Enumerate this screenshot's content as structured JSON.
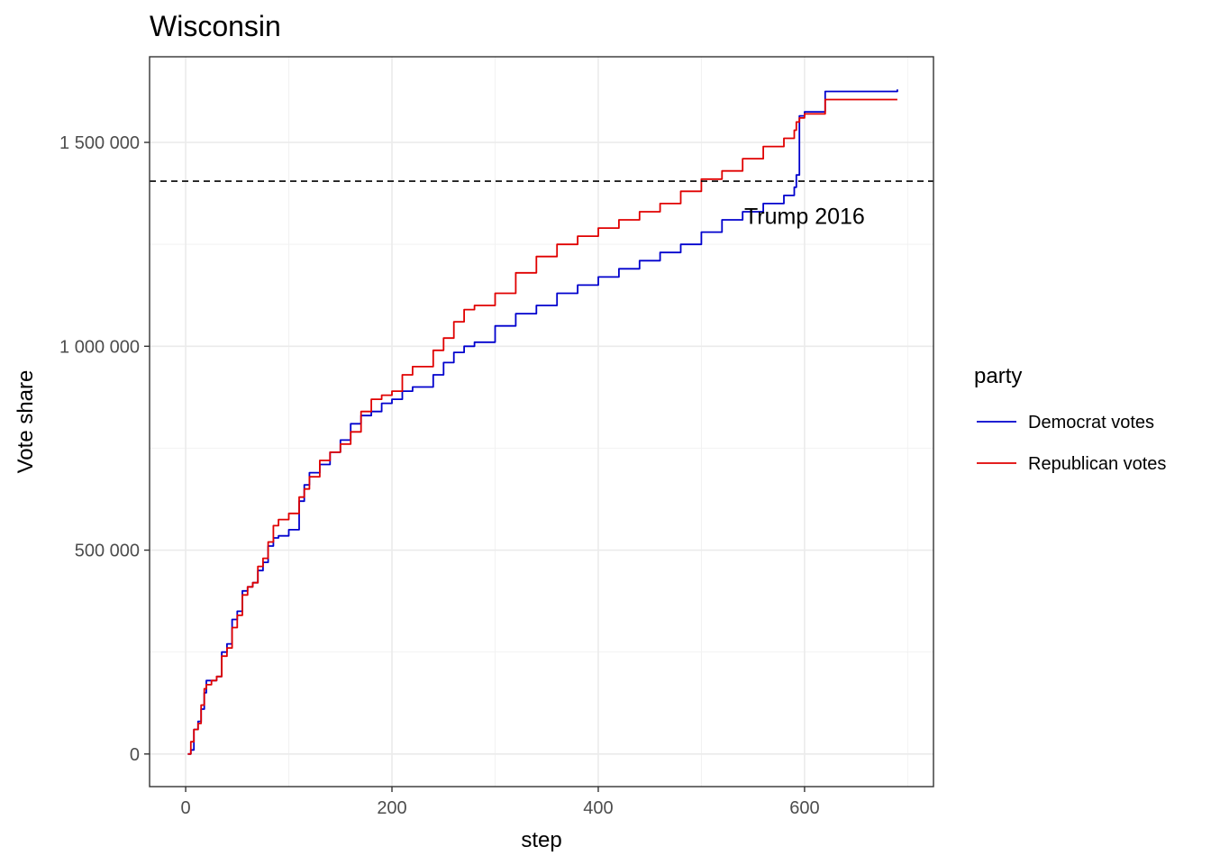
{
  "chart_data": {
    "type": "line",
    "title": "Wisconsin",
    "xlabel": "step",
    "ylabel": "Vote share",
    "xlim": [
      -35,
      725
    ],
    "ylim": [
      -80000,
      1710000
    ],
    "x_ticks": [
      0,
      200,
      400,
      600
    ],
    "x_tick_labels": [
      "0",
      "200",
      "400",
      "600"
    ],
    "y_ticks": [
      0,
      500000,
      1000000,
      1500000
    ],
    "y_tick_labels": [
      "0",
      "500 000",
      "1 000 000",
      "1 500 000"
    ],
    "grid": true,
    "legend": {
      "title": "party",
      "position": "right"
    },
    "reference_line": {
      "y": 1405000,
      "style": "dashed",
      "label": "Trump 2016",
      "label_x": 600,
      "label_y": 1320000
    },
    "series": [
      {
        "name": "Democrat votes",
        "color": "#0000CD",
        "x": [
          2,
          5,
          8,
          12,
          15,
          18,
          20,
          25,
          30,
          35,
          40,
          45,
          50,
          55,
          60,
          65,
          70,
          75,
          80,
          85,
          90,
          100,
          110,
          115,
          120,
          130,
          140,
          150,
          160,
          170,
          180,
          190,
          200,
          210,
          220,
          240,
          250,
          260,
          270,
          280,
          300,
          320,
          340,
          360,
          380,
          400,
          420,
          440,
          460,
          480,
          500,
          520,
          540,
          560,
          580,
          590,
          592,
          595,
          600,
          620,
          690
        ],
        "y": [
          0,
          10000,
          60000,
          80000,
          110000,
          150000,
          180000,
          180000,
          190000,
          250000,
          270000,
          330000,
          350000,
          400000,
          410000,
          420000,
          450000,
          470000,
          510000,
          530000,
          535000,
          550000,
          620000,
          660000,
          690000,
          710000,
          740000,
          770000,
          810000,
          830000,
          840000,
          860000,
          870000,
          890000,
          900000,
          930000,
          960000,
          985000,
          1000000,
          1010000,
          1050000,
          1080000,
          1100000,
          1130000,
          1150000,
          1170000,
          1190000,
          1210000,
          1230000,
          1250000,
          1280000,
          1310000,
          1330000,
          1350000,
          1370000,
          1390000,
          1420000,
          1565000,
          1575000,
          1625000,
          1630000
        ]
      },
      {
        "name": "Republican votes",
        "color": "#E00000",
        "x": [
          2,
          5,
          8,
          12,
          15,
          18,
          20,
          25,
          30,
          35,
          40,
          45,
          50,
          55,
          60,
          65,
          70,
          75,
          80,
          85,
          90,
          100,
          110,
          115,
          120,
          130,
          140,
          150,
          160,
          170,
          180,
          190,
          200,
          210,
          220,
          240,
          250,
          260,
          270,
          280,
          300,
          320,
          340,
          360,
          380,
          400,
          420,
          440,
          460,
          480,
          500,
          520,
          540,
          560,
          580,
          590,
          592,
          595,
          600,
          620,
          690
        ],
        "y": [
          0,
          30000,
          60000,
          75000,
          120000,
          160000,
          170000,
          180000,
          190000,
          240000,
          260000,
          310000,
          340000,
          390000,
          410000,
          420000,
          460000,
          480000,
          520000,
          560000,
          575000,
          590000,
          630000,
          650000,
          680000,
          720000,
          740000,
          760000,
          790000,
          840000,
          870000,
          880000,
          890000,
          930000,
          950000,
          990000,
          1020000,
          1060000,
          1090000,
          1100000,
          1130000,
          1180000,
          1220000,
          1250000,
          1270000,
          1290000,
          1310000,
          1330000,
          1350000,
          1380000,
          1410000,
          1430000,
          1460000,
          1490000,
          1510000,
          1530000,
          1550000,
          1560000,
          1570000,
          1605000,
          1605000
        ]
      }
    ]
  }
}
